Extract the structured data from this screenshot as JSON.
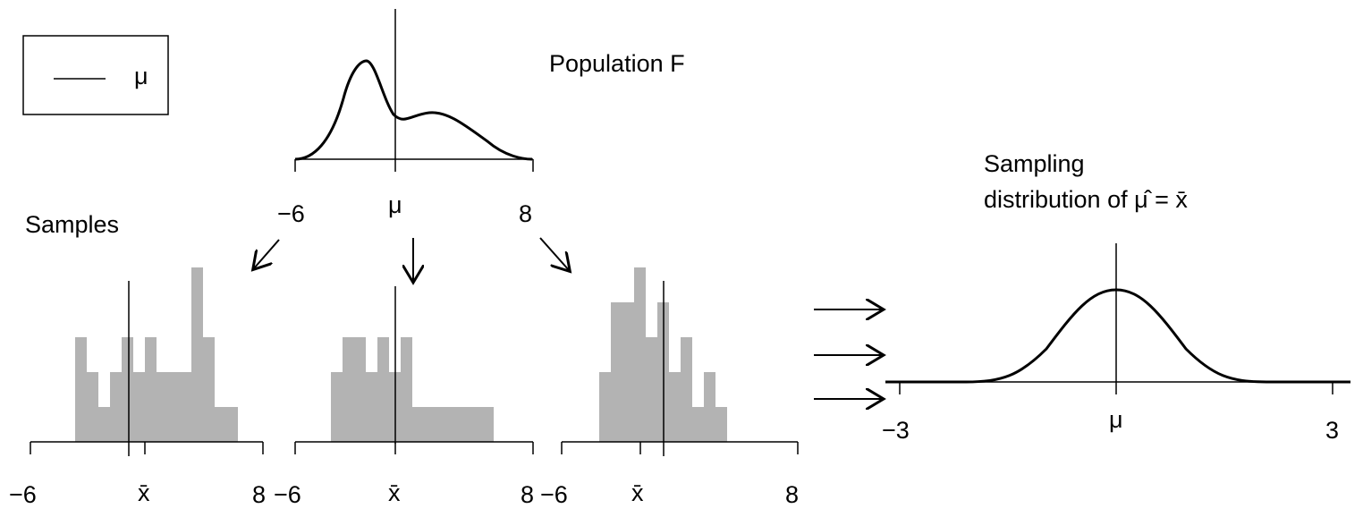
{
  "legend": {
    "symbol": "μ"
  },
  "population": {
    "title": "Population F",
    "ticks": {
      "left": "−6",
      "center": "μ",
      "right": "8"
    }
  },
  "samples": {
    "label": "Samples",
    "panels": [
      {
        "ticks": {
          "left": "−6",
          "center": "x̄",
          "right": "8"
        },
        "histogram": [
          3,
          2,
          1,
          2,
          3,
          2,
          3,
          2,
          2,
          2,
          5,
          3,
          1,
          1
        ]
      },
      {
        "ticks": {
          "left": "−6",
          "center": "x̄",
          "right": "8"
        },
        "histogram": [
          2,
          3,
          3,
          2,
          3,
          2,
          3,
          1,
          1,
          1,
          1,
          1,
          1,
          1
        ]
      },
      {
        "ticks": {
          "left": "−6",
          "center": "x̄",
          "right": ""
        },
        "histogram": [
          2,
          4,
          4,
          5,
          3,
          4,
          2,
          3,
          1,
          2,
          1
        ]
      }
    ]
  },
  "sampling": {
    "title_line1": "Sampling",
    "title_line2": "distribution of μ̂ = x̄",
    "ticks": {
      "left": "−3",
      "center": "μ",
      "right": "3"
    }
  },
  "extra_tick": "8"
}
